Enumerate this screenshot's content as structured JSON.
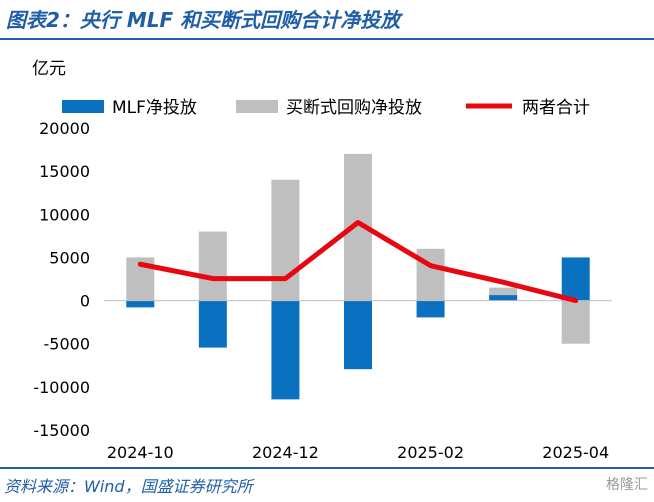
{
  "header": {
    "title": "图表2：央行 MLF 和买断式回购合计净投放"
  },
  "footer": {
    "source": "资料来源：Wind，国盛证券研究所",
    "watermark": "格隆汇"
  },
  "colors": {
    "mlf": "#0a70c0",
    "outright": "#bfbfbf",
    "total": "#e8060f",
    "accent": "#1f5fa8"
  },
  "chart_data": {
    "type": "bar",
    "unit_label": "亿元",
    "categories": [
      "2024-10",
      "2024-11",
      "2024-12",
      "2025-01",
      "2025-02",
      "2025-03",
      "2025-04"
    ],
    "x_tick_labels": [
      "2024-10",
      "2024-12",
      "2025-02",
      "2025-04"
    ],
    "series": [
      {
        "name": "MLF净投放",
        "type": "bar",
        "values": [
          -789,
          -5450,
          -11450,
          -7950,
          -1950,
          630,
          5000
        ]
      },
      {
        "name": "买断式回购净投放",
        "type": "bar",
        "values": [
          5000,
          8000,
          14000,
          17000,
          6000,
          1500,
          -5000
        ]
      },
      {
        "name": "两者合计",
        "type": "line",
        "values": [
          4211,
          2550,
          2550,
          9050,
          4050,
          2130,
          0
        ]
      }
    ],
    "ylim": [
      -15000,
      20000
    ],
    "y_ticks": [
      20000,
      15000,
      10000,
      5000,
      0,
      -5000,
      -10000,
      -15000
    ],
    "legend_position": "top"
  }
}
